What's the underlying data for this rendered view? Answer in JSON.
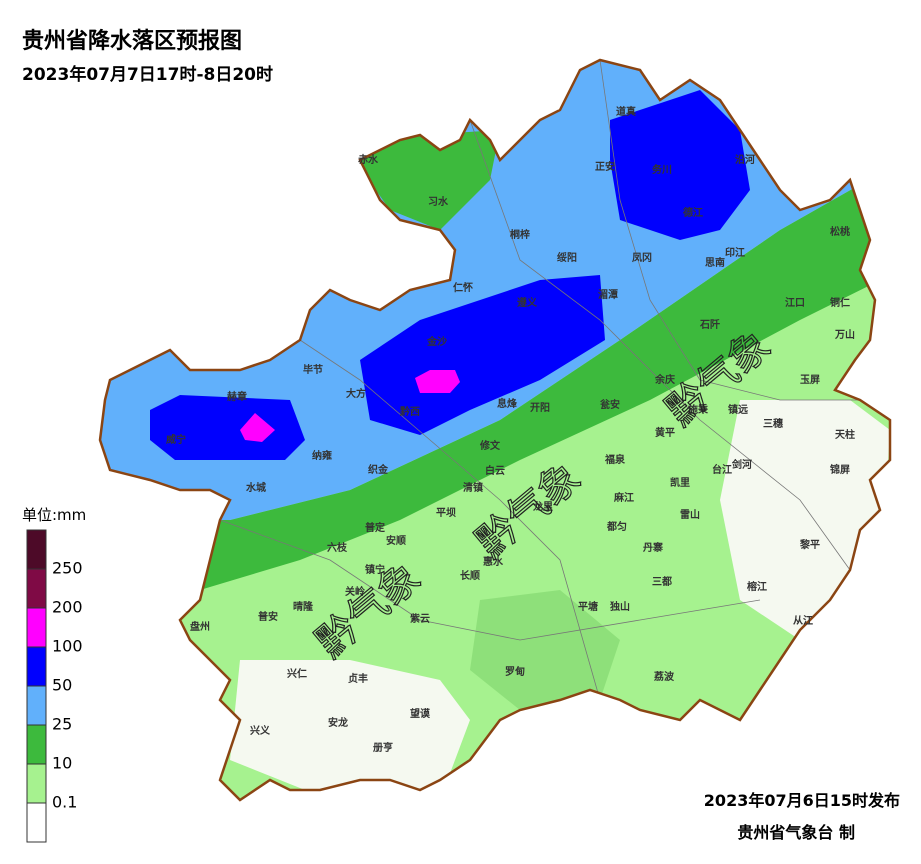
{
  "header": {
    "title": "贵州省降水落区预报图",
    "subtitle": "2023年07月7日17时-8日20时"
  },
  "legend": {
    "unit": "单位:mm",
    "labels": [
      "250",
      "200",
      "100",
      "50",
      "25",
      "10",
      "0.1"
    ]
  },
  "counties": [
    "赤水",
    "习水",
    "道真",
    "正安",
    "务川",
    "沿河",
    "德江",
    "桐梓",
    "绥阳",
    "凤冈",
    "印江",
    "思南",
    "松桃",
    "仁怀",
    "遵义",
    "湄潭",
    "江口",
    "铜仁",
    "石阡",
    "万山",
    "金沙",
    "毕节",
    "大方",
    "黔西",
    "息烽",
    "开阳",
    "瓮安",
    "余庆",
    "玉屏",
    "赫章",
    "威宁",
    "施秉",
    "镇远",
    "三穗",
    "天柱",
    "黄平",
    "纳雍",
    "织金",
    "修文",
    "水城",
    "清镇",
    "白云",
    "福泉",
    "凯里",
    "台江",
    "剑河",
    "锦屏",
    "麻江",
    "雷山",
    "龙里",
    "平坝",
    "普定",
    "都匀",
    "六枝",
    "安顺",
    "丹寨",
    "黎平",
    "惠水",
    "镇宁",
    "长顺",
    "关岭",
    "三都",
    "榕江",
    "盘州",
    "晴隆",
    "普安",
    "平塘",
    "独山",
    "从江",
    "紫云",
    "兴仁",
    "贞丰",
    "罗甸",
    "荔波",
    "望谟",
    "兴义",
    "安龙",
    "册亨"
  ],
  "watermarks": [
    "黔气象",
    "黔气象",
    "黔气象",
    "黔气象"
  ],
  "footer": {
    "issued": "2023年07月6日15时发布",
    "agency": "贵州省气象台 制"
  }
}
